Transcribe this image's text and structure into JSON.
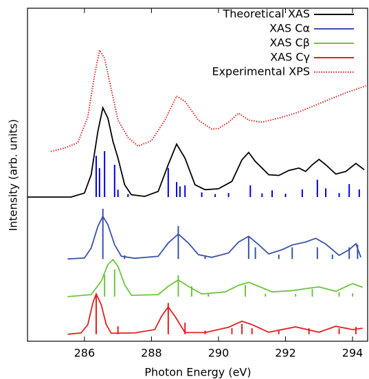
{
  "chart_data": {
    "type": "line",
    "xlabel": "Photon Energy (eV)",
    "ylabel": "Intensity (arb. units)",
    "xlim": [
      284.3,
      294.45
    ],
    "ylim": [
      0,
      100
    ],
    "xticks": [
      286,
      288,
      290,
      292,
      294
    ],
    "legend": "upper right",
    "series": [
      {
        "name": "Theoretical XAS",
        "color": "#000000",
        "style": "solid",
        "x": [
          284.3,
          285.6,
          286.0,
          286.2,
          286.4,
          286.55,
          286.7,
          286.85,
          287.0,
          287.2,
          287.4,
          287.8,
          288.2,
          288.5,
          288.75,
          289.0,
          289.3,
          289.6,
          290.0,
          290.4,
          290.7,
          290.9,
          291.1,
          291.5,
          291.8,
          292.1,
          292.4,
          292.6,
          292.8,
          293.0,
          293.2,
          293.5,
          293.8,
          294.1,
          294.35
        ],
        "values": [
          43.3,
          43.3,
          44.5,
          50,
          63,
          70.1,
          67,
          60,
          55,
          47,
          44,
          43.5,
          45,
          53,
          59.2,
          55,
          47,
          45.5,
          45.8,
          48,
          54.5,
          56.7,
          54,
          50,
          49.8,
          51.3,
          52,
          51,
          53,
          54.6,
          53,
          50.2,
          51,
          53.4,
          51.5
        ],
        "sticks": {
          "color": "#0000dd",
          "x": [
            286.35,
            286.45,
            286.6,
            286.9,
            287.0,
            287.3,
            288.5,
            288.75,
            288.85,
            289.0,
            289.5,
            289.9,
            290.3,
            290.95,
            291.3,
            291.6,
            292.0,
            292.5,
            292.95,
            293.2,
            293.6,
            293.9,
            294.2
          ],
          "values": [
            55.7,
            52,
            57.1,
            53,
            45.5,
            44.2,
            52,
            47.8,
            46.5,
            46.8,
            44.7,
            44.2,
            44.5,
            46.8,
            44.4,
            45.3,
            44.3,
            45.6,
            48.5,
            45.9,
            44.5,
            47.2,
            45.6
          ]
        }
      },
      {
        "name": "XAS Cα",
        "color": "#3a52a8",
        "style": "solid",
        "x": [
          285.5,
          286.0,
          286.2,
          286.4,
          286.55,
          286.7,
          286.9,
          287.1,
          287.5,
          288.2,
          288.5,
          288.8,
          289.1,
          289.4,
          289.8,
          290.3,
          290.6,
          290.9,
          291.2,
          291.5,
          291.9,
          292.2,
          292.6,
          292.9,
          293.2,
          293.6,
          293.9,
          294.1,
          294.25
        ],
        "values": [
          24.7,
          25,
          28,
          34.5,
          37.5,
          35,
          29,
          25.5,
          24.9,
          25.5,
          29.5,
          32.2,
          29.5,
          26,
          25.2,
          26.5,
          29.8,
          31.5,
          29,
          26.2,
          27.5,
          28.9,
          29.8,
          30.9,
          29.2,
          25.8,
          27.5,
          29.3,
          25.2
        ],
        "sticks": {
          "color": "#3a52a8",
          "x": [
            286.55,
            287.2,
            288.8,
            289.6,
            290.9,
            291.1,
            291.8,
            292.2,
            292.95,
            293.4,
            293.9,
            294.15
          ],
          "values": [
            39.8,
            25.8,
            34.6,
            25.8,
            31.3,
            28.2,
            26,
            28.2,
            28.2,
            26,
            28.2,
            29
          ]
        }
      },
      {
        "name": "XAS Cβ",
        "color": "#6cc43a",
        "style": "solid",
        "x": [
          285.5,
          286.2,
          286.5,
          286.7,
          286.85,
          287.0,
          287.2,
          287.4,
          288.2,
          288.5,
          288.8,
          289.1,
          289.5,
          290.2,
          290.6,
          290.9,
          291.2,
          291.6,
          292.2,
          292.6,
          293.0,
          293.5,
          294.0,
          294.3
        ],
        "values": [
          13.4,
          14,
          18,
          23,
          24.5,
          22.5,
          17,
          13.8,
          14,
          16.5,
          18.4,
          16.5,
          14.2,
          14.8,
          16.8,
          17.7,
          16.5,
          14.8,
          15.2,
          15.8,
          16.3,
          15,
          17.3,
          16.2
        ],
        "sticks": {
          "color": "#6cc43a",
          "x": [
            286.6,
            286.9,
            288.8,
            289.2,
            289.7,
            290.8,
            291.4,
            292.3,
            292.8,
            293.6,
            294.0
          ],
          "values": [
            20,
            21.6,
            19.8,
            16.5,
            14.5,
            16.9,
            14.3,
            14.2,
            15.7,
            14.7,
            14.4
          ]
        }
      },
      {
        "name": "XAS Cγ",
        "color": "#e02020",
        "style": "solid",
        "x": [
          285.5,
          285.9,
          286.1,
          286.25,
          286.35,
          286.5,
          286.65,
          286.8,
          287.5,
          288.1,
          288.3,
          288.5,
          288.7,
          289.0,
          289.6,
          290.3,
          290.7,
          291.0,
          291.5,
          292.3,
          293.0,
          293.5,
          294.0,
          294.3
        ],
        "values": [
          2.1,
          2.5,
          5,
          11.5,
          14.2,
          11,
          5,
          2.4,
          2.5,
          3.5,
          7.5,
          10.3,
          7.5,
          2.6,
          2.6,
          4.2,
          6,
          5,
          2.7,
          4.3,
          2.7,
          4.5,
          3.5,
          3.9
        ],
        "sticks": {
          "color": "#e02020",
          "x": [
            286.35,
            287.0,
            288.5,
            289.0,
            289.6,
            290.4,
            290.7,
            291.0,
            291.8,
            292.7,
            293.6,
            294.1
          ],
          "values": [
            14.2,
            4.5,
            11.5,
            5.6,
            3.2,
            3.9,
            5.2,
            3.9,
            3.1,
            3.9,
            3.9,
            4.3
          ]
        }
      },
      {
        "name": "Experimental XPS",
        "color": "#e02020",
        "style": "dotted",
        "x": [
          285.0,
          285.4,
          285.8,
          286.1,
          286.3,
          286.45,
          286.6,
          286.8,
          287.0,
          287.3,
          287.6,
          288.0,
          288.4,
          288.75,
          289.0,
          289.4,
          289.8,
          290.0,
          290.3,
          290.6,
          290.9,
          291.3,
          291.8,
          292.3,
          292.8,
          293.3,
          293.8,
          294.4
        ],
        "values": [
          57,
          58,
          59.6,
          67.4,
          79.8,
          87.4,
          85,
          75.7,
          66.4,
          61.2,
          58.6,
          60.2,
          66.4,
          73.6,
          72,
          66.4,
          63.7,
          63.9,
          65.8,
          68.5,
          66.4,
          65.8,
          67,
          68.5,
          70.5,
          72.6,
          74.6,
          76.7
        ]
      }
    ]
  }
}
